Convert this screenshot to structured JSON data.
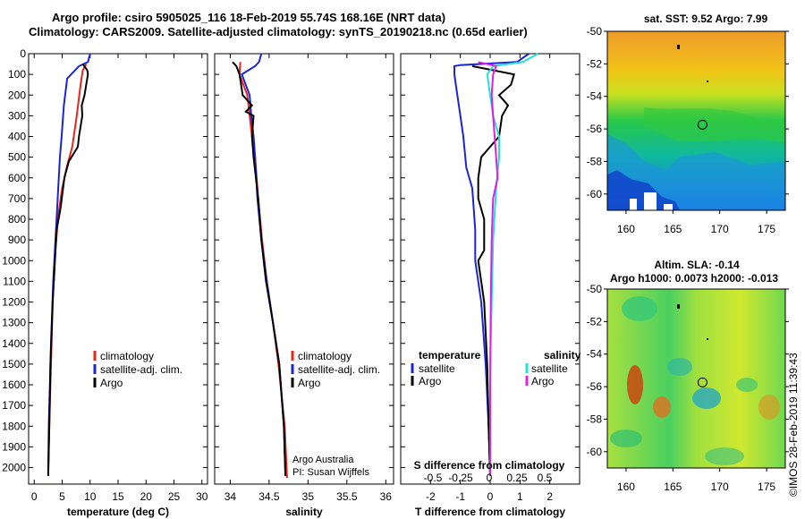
{
  "header": {
    "line1": "Argo profile: csiro 5905025_116 18-Feb-2019 55.74S 168.16E (NRT data)",
    "line2": "Climatology: CARS2009. Satellite-adjusted climatology: synTS_20190218.nc (0.65d earlier)"
  },
  "credit": "©IMOS 28-Feb-2019 11:39:43",
  "colors": {
    "climatology": "#e8241c",
    "satellite": "#1a24d8",
    "argo": "#000000",
    "sat_salinity": "#22e0e0",
    "argo_salinity": "#e020e0"
  },
  "chart_data": [
    {
      "type": "line",
      "id": "temperature",
      "xlabel": "temperature (deg C)",
      "xlim": [
        -1,
        31
      ],
      "ylim": [
        2080,
        0
      ],
      "y_inverted": true,
      "xticks": [
        0,
        5,
        10,
        15,
        20,
        25,
        30
      ],
      "yticks": [
        0,
        100,
        200,
        300,
        400,
        500,
        600,
        700,
        800,
        900,
        1000,
        1100,
        1200,
        1300,
        1400,
        1500,
        1600,
        1700,
        1800,
        1900,
        2000
      ],
      "legend": [
        "climatology",
        "satellite-adj. clim.",
        "Argo"
      ],
      "series": [
        {
          "name": "climatology",
          "color": "#e8241c",
          "points": [
            [
              9.3,
              50
            ],
            [
              8.7,
              80
            ],
            [
              8.3,
              150
            ],
            [
              7.6,
              300
            ],
            [
              6.8,
              450
            ],
            [
              5.8,
              550
            ],
            [
              5.0,
              650
            ],
            [
              4.3,
              780
            ],
            [
              3.8,
              950
            ],
            [
              3.3,
              1200
            ],
            [
              3.0,
              1500
            ],
            [
              2.7,
              1800
            ],
            [
              2.5,
              2030
            ]
          ]
        },
        {
          "name": "satellite-adj. clim.",
          "color": "#1a24d8",
          "points": [
            [
              10.0,
              0
            ],
            [
              9.6,
              40
            ],
            [
              8.0,
              60
            ],
            [
              5.9,
              120
            ],
            [
              5.3,
              250
            ],
            [
              4.9,
              400
            ],
            [
              4.6,
              500
            ],
            [
              4.3,
              650
            ],
            [
              3.8,
              900
            ],
            [
              3.4,
              1100
            ],
            [
              3.0,
              1400
            ],
            [
              2.8,
              1600
            ],
            [
              2.6,
              1800
            ],
            [
              2.5,
              2040
            ]
          ]
        },
        {
          "name": "Argo",
          "color": "#000000",
          "points": [
            [
              8.7,
              50
            ],
            [
              9.5,
              80
            ],
            [
              9.6,
              100
            ],
            [
              9.0,
              200
            ],
            [
              8.5,
              250
            ],
            [
              8.6,
              300
            ],
            [
              8.0,
              400
            ],
            [
              7.8,
              450
            ],
            [
              6.2,
              520
            ],
            [
              5.4,
              600
            ],
            [
              4.7,
              750
            ],
            [
              4.0,
              850
            ],
            [
              3.8,
              950
            ],
            [
              3.3,
              1200
            ],
            [
              2.9,
              1500
            ],
            [
              2.7,
              1800
            ],
            [
              2.5,
              2040
            ]
          ]
        }
      ]
    },
    {
      "type": "line",
      "id": "salinity",
      "xlabel": "salinity",
      "xlim": [
        33.8,
        36.1
      ],
      "ylim": [
        2080,
        0
      ],
      "y_inverted": true,
      "xticks": [
        34,
        34.5,
        35,
        35.5,
        36
      ],
      "legend": [
        "climatology",
        "satellite-adj. clim.",
        "Argo"
      ],
      "annotation": [
        "Argo Australia",
        "PI: Susan Wijffels"
      ],
      "series": [
        {
          "name": "climatology",
          "color": "#e8241c",
          "points": [
            [
              34.13,
              40
            ],
            [
              34.12,
              100
            ],
            [
              34.22,
              200
            ],
            [
              34.25,
              300
            ],
            [
              34.28,
              400
            ],
            [
              34.32,
              500
            ],
            [
              34.36,
              700
            ],
            [
              34.41,
              900
            ],
            [
              34.47,
              1100
            ],
            [
              34.55,
              1300
            ],
            [
              34.62,
              1500
            ],
            [
              34.7,
              1800
            ],
            [
              34.73,
              2050
            ]
          ]
        },
        {
          "name": "satellite-adj. clim.",
          "color": "#1a24d8",
          "points": [
            [
              34.4,
              0
            ],
            [
              34.37,
              40
            ],
            [
              34.32,
              60
            ],
            [
              34.15,
              100
            ],
            [
              34.25,
              200
            ],
            [
              34.27,
              300
            ],
            [
              34.3,
              400
            ],
            [
              34.32,
              500
            ],
            [
              34.35,
              700
            ],
            [
              34.4,
              900
            ],
            [
              34.47,
              1100
            ],
            [
              34.55,
              1300
            ],
            [
              34.63,
              1500
            ],
            [
              34.69,
              1800
            ],
            [
              34.71,
              2040
            ]
          ]
        },
        {
          "name": "Argo",
          "color": "#000000",
          "points": [
            [
              34.03,
              40
            ],
            [
              34.08,
              60
            ],
            [
              34.12,
              100
            ],
            [
              34.16,
              200
            ],
            [
              34.28,
              250
            ],
            [
              34.2,
              280
            ],
            [
              34.3,
              300
            ],
            [
              34.28,
              400
            ],
            [
              34.3,
              500
            ],
            [
              34.33,
              600
            ],
            [
              34.36,
              700
            ],
            [
              34.4,
              900
            ],
            [
              34.46,
              1100
            ],
            [
              34.55,
              1300
            ],
            [
              34.63,
              1500
            ],
            [
              34.69,
              1800
            ],
            [
              34.71,
              2040
            ]
          ]
        }
      ]
    },
    {
      "type": "line",
      "id": "difference",
      "xlabel": "T difference from climatology",
      "x2label": "S difference from climatology",
      "xlim": [
        -3,
        3
      ],
      "ylim": [
        2080,
        0
      ],
      "y_inverted": true,
      "xticks": [
        -2,
        -1,
        0,
        1,
        2
      ],
      "x2ticks": [
        "-0.5",
        "-0.25",
        "0",
        "0.25",
        "0.5"
      ],
      "legend_left_title": "temperature",
      "legend_right_title": "salinity",
      "legend_left": [
        "satellite",
        "Argo"
      ],
      "legend_right": [
        "satellite",
        "Argo"
      ],
      "series": [
        {
          "name": "satellite",
          "group": "temperature",
          "color": "#1a24d8",
          "points": [
            [
              1.3,
              0
            ],
            [
              0.9,
              40
            ],
            [
              -1.0,
              55
            ],
            [
              -1.2,
              60
            ],
            [
              -1.2,
              100
            ],
            [
              -1.1,
              200
            ],
            [
              -1.0,
              300
            ],
            [
              -0.9,
              400
            ],
            [
              -0.8,
              550
            ],
            [
              -0.6,
              650
            ],
            [
              -0.5,
              850
            ],
            [
              -0.5,
              1000
            ],
            [
              -0.3,
              1200
            ],
            [
              -0.15,
              1500
            ],
            [
              -0.05,
              1800
            ],
            [
              0,
              2040
            ]
          ]
        },
        {
          "name": "Argo",
          "group": "temperature",
          "color": "#000000",
          "points": [
            [
              -0.6,
              60
            ],
            [
              0.8,
              100
            ],
            [
              0.7,
              150
            ],
            [
              0.3,
              200
            ],
            [
              0.6,
              250
            ],
            [
              0.4,
              300
            ],
            [
              0.3,
              400
            ],
            [
              -0.3,
              500
            ],
            [
              -0.4,
              600
            ],
            [
              -0.4,
              700
            ],
            [
              -0.2,
              800
            ],
            [
              -0.2,
              950
            ],
            [
              -0.4,
              1000
            ],
            [
              -0.3,
              1100
            ],
            [
              -0.2,
              1200
            ],
            [
              -0.1,
              1500
            ],
            [
              -0.05,
              1800
            ],
            [
              0,
              2040
            ]
          ]
        },
        {
          "name": "satellite",
          "group": "salinity",
          "color": "#22e0e0",
          "points": [
            [
              1.6,
              0
            ],
            [
              1.1,
              40
            ],
            [
              0.1,
              60
            ],
            [
              -0.1,
              100
            ],
            [
              0.0,
              200
            ],
            [
              0.1,
              300
            ],
            [
              0.3,
              400
            ],
            [
              0.3,
              500
            ],
            [
              0.2,
              650
            ],
            [
              0.1,
              900
            ],
            [
              0.05,
              1200
            ],
            [
              0.0,
              1500
            ],
            [
              0.0,
              2040
            ]
          ]
        },
        {
          "name": "Argo",
          "group": "salinity",
          "color": "#e020e0",
          "points": [
            [
              -0.4,
              40
            ],
            [
              0.2,
              60
            ],
            [
              0.1,
              100
            ],
            [
              0.05,
              200
            ],
            [
              0.1,
              300
            ],
            [
              0.2,
              500
            ],
            [
              0.25,
              600
            ],
            [
              0.1,
              700
            ],
            [
              0.05,
              900
            ],
            [
              0.02,
              1200
            ],
            [
              0.0,
              1600
            ],
            [
              0.0,
              2040
            ]
          ]
        }
      ]
    },
    {
      "type": "heatmap",
      "id": "sst_map",
      "title": "sat. SST: 9.52 Argo: 7.99",
      "xlim": [
        158,
        177
      ],
      "ylim": [
        -61,
        -50
      ],
      "xticks": [
        160,
        165,
        170,
        175
      ],
      "yticks": [
        -50,
        -52,
        -54,
        -56,
        -58,
        -60
      ],
      "marker": [
        168.16,
        -55.74
      ]
    },
    {
      "type": "heatmap",
      "id": "sla_map",
      "title": "Altim. SLA: -0.14",
      "subtitle": "Argo h1000: 0.0073 h2000: -0.013",
      "xlim": [
        158,
        177
      ],
      "ylim": [
        -61,
        -50
      ],
      "xticks": [
        160,
        165,
        170,
        175
      ],
      "yticks": [
        -50,
        -52,
        -54,
        -56,
        -58,
        -60
      ],
      "marker": [
        168.16,
        -55.74
      ]
    }
  ]
}
